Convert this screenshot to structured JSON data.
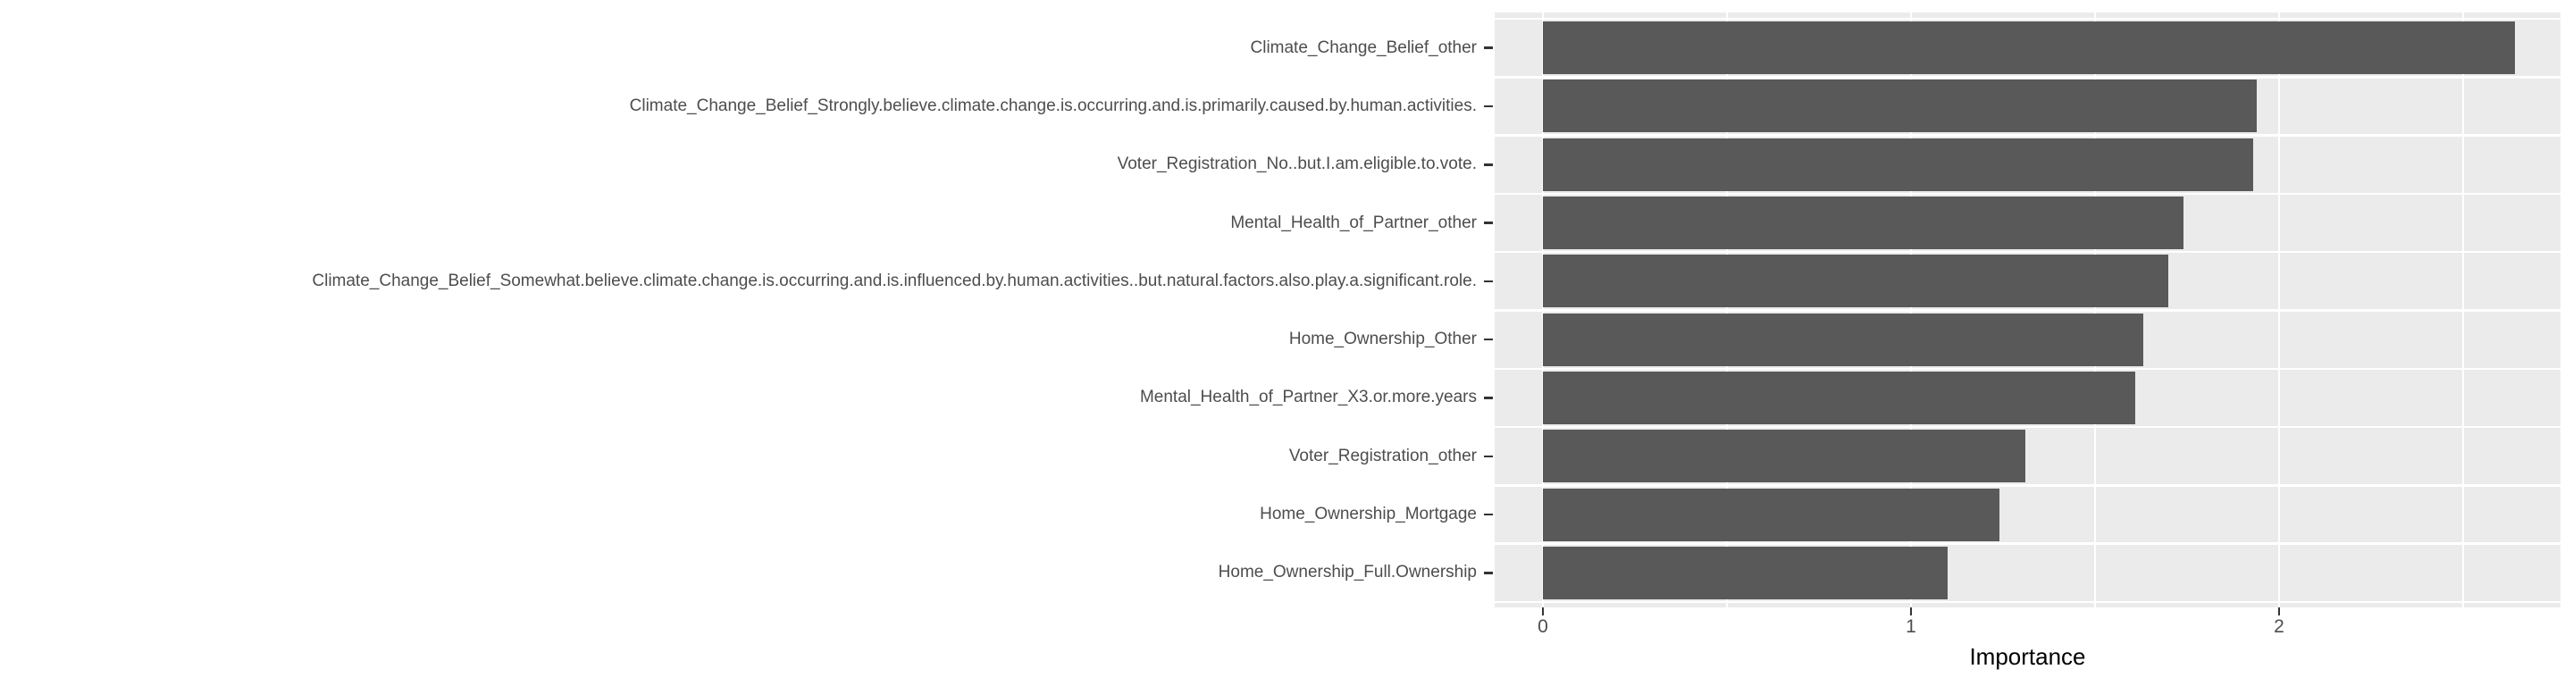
{
  "chart_data": {
    "type": "bar",
    "orientation": "horizontal",
    "title": "",
    "xlabel": "Importance",
    "ylabel": "",
    "categories": [
      "Climate_Change_Belief_other",
      "Climate_Change_Belief_Strongly.believe.climate.change.is.occurring.and.is.primarily.caused.by.human.activities.",
      "Voter_Registration_No..but.I.am.eligible.to.vote.",
      "Mental_Health_of_Partner_other",
      "Climate_Change_Belief_Somewhat.believe.climate.change.is.occurring.and.is.influenced.by.human.activities..but.natural.factors.also.play.a.significant.role.",
      "Home_Ownership_Other",
      "Mental_Health_of_Partner_X3.or.more.years",
      "Voter_Registration_other",
      "Home_Ownership_Mortgage",
      "Home_Ownership_Full.Ownership"
    ],
    "values": [
      2.64,
      1.94,
      1.93,
      1.74,
      1.7,
      1.63,
      1.61,
      1.31,
      1.24,
      1.1
    ],
    "x_ticks": [
      0,
      1,
      2
    ],
    "x_minor_ticks": [
      0.5,
      1.5,
      2.5
    ],
    "xlim": [
      -0.13,
      2.77
    ],
    "grid": true,
    "legend_position": "none",
    "style": {
      "bar_color": "#595959",
      "panel_background": "#EBEBEB",
      "grid_color": "#FFFFFF",
      "tick_mark_color": "#333333",
      "axis_text_color": "#4D4D4D",
      "axis_title_color": "#000000",
      "page_background": "#FFFFFF"
    }
  }
}
